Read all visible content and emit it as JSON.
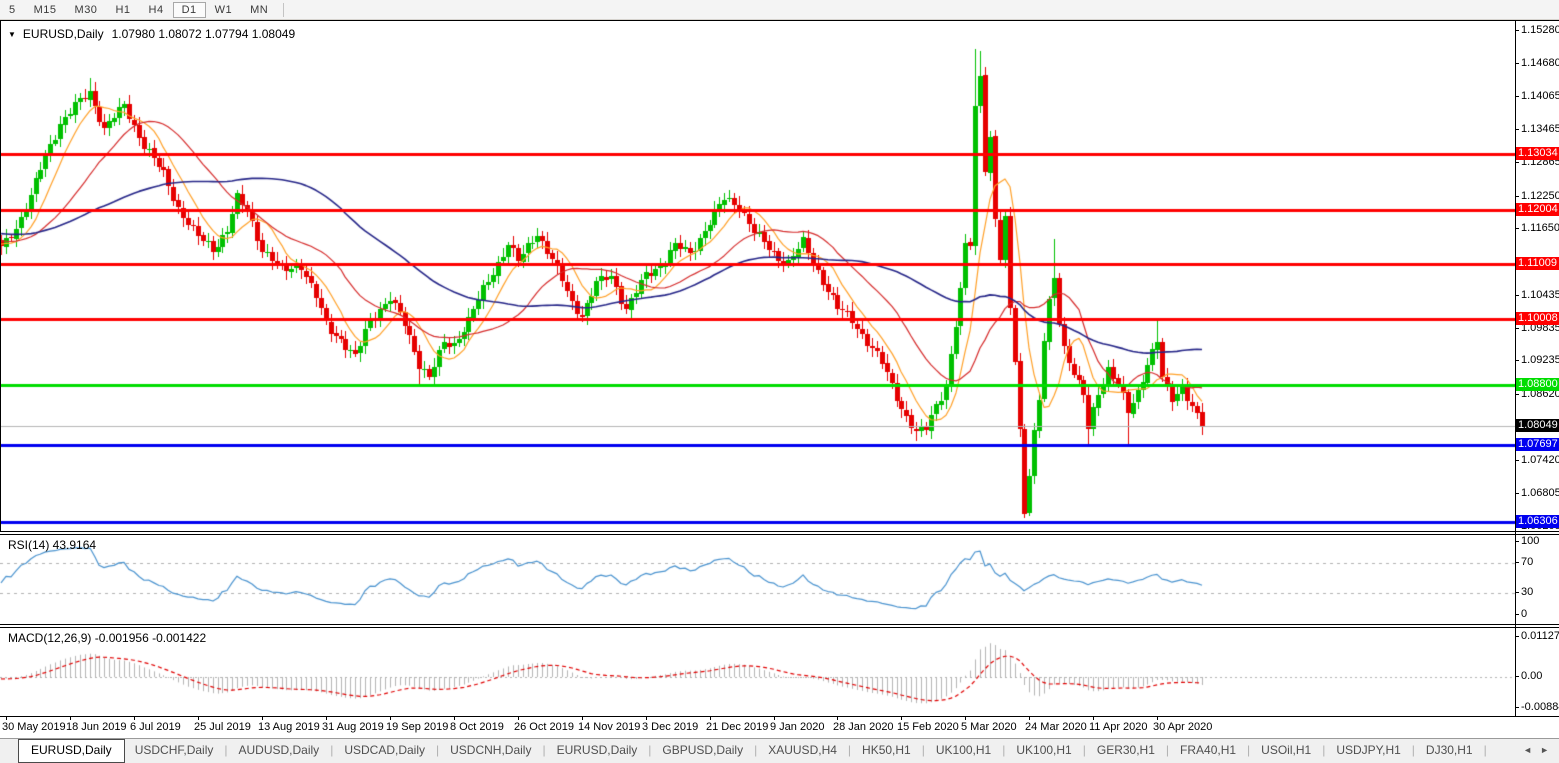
{
  "toolbar": {
    "timeframes": [
      "5",
      "M15",
      "M30",
      "H1",
      "H4",
      "D1",
      "W1",
      "MN"
    ],
    "active": "D1"
  },
  "chart": {
    "title_symbol": "EURUSD,Daily",
    "title_ohlc": "1.07980 1.08072 1.07794 1.08049"
  },
  "chart_data": {
    "type": "candlestick",
    "symbol": "EURUSD",
    "timeframe": "Daily",
    "ohlc_display": {
      "open": "1.07980",
      "high": "1.08072",
      "low": "1.07794",
      "close": "1.08049"
    },
    "bar_count": 245,
    "bars_per_label": 13,
    "x_labels": [
      "30 May 2019",
      "18 Jun 2019",
      "6 Jul 2019",
      "25 Jul 2019",
      "13 Aug 2019",
      "31 Aug 2019",
      "19 Sep 2019",
      "8 Oct 2019",
      "26 Oct 2019",
      "14 Nov 2019",
      "3 Dec 2019",
      "21 Dec 2019",
      "9 Jan 2020",
      "28 Jan 2020",
      "15 Feb 2020",
      "5 Mar 2020",
      "24 Mar 2020",
      "11 Apr 2020",
      "30 Apr 2020"
    ],
    "price_ticks": [
      "1.15280",
      "1.14680",
      "1.14065",
      "1.13465",
      "1.12865",
      "1.12250",
      "1.11650",
      "1.10435",
      "1.09835",
      "1.09235",
      "1.08620",
      "1.07420",
      "1.06805",
      "1.06205"
    ],
    "close_keyframes": [
      [
        0,
        1.113
      ],
      [
        3,
        1.117
      ],
      [
        6,
        1.1225
      ],
      [
        9,
        1.13
      ],
      [
        12,
        1.136
      ],
      [
        15,
        1.139
      ],
      [
        18,
        1.1415
      ],
      [
        21,
        1.135
      ],
      [
        25,
        1.139
      ],
      [
        29,
        1.132
      ],
      [
        33,
        1.1265
      ],
      [
        36,
        1.1205
      ],
      [
        40,
        1.115
      ],
      [
        43,
        1.113
      ],
      [
        46,
        1.1165
      ],
      [
        48,
        1.122
      ],
      [
        50,
        1.12
      ],
      [
        53,
        1.113
      ],
      [
        57,
        1.109
      ],
      [
        61,
        1.11
      ],
      [
        64,
        1.104
      ],
      [
        66,
        1.099
      ],
      [
        69,
        1.0965
      ],
      [
        72,
        1.093
      ],
      [
        75,
        1.1
      ],
      [
        79,
        1.104
      ],
      [
        82,
        1.099
      ],
      [
        85,
        1.092
      ],
      [
        87,
        1.0895
      ],
      [
        90,
        1.0955
      ],
      [
        92,
        1.0955
      ],
      [
        95,
        1.1
      ],
      [
        99,
        1.107
      ],
      [
        103,
        1.114
      ],
      [
        105,
        1.1105
      ],
      [
        109,
        1.116
      ],
      [
        112,
        1.111
      ],
      [
        116,
        1.103
      ],
      [
        118,
        1.101
      ],
      [
        121,
        1.1065
      ],
      [
        124,
        1.108
      ],
      [
        127,
        1.102
      ],
      [
        131,
        1.108
      ],
      [
        134,
        1.11
      ],
      [
        137,
        1.1135
      ],
      [
        140,
        1.112
      ],
      [
        144,
        1.118
      ],
      [
        147,
        1.122
      ],
      [
        150,
        1.121
      ],
      [
        153,
        1.116
      ],
      [
        157,
        1.112
      ],
      [
        160,
        1.1105
      ],
      [
        163,
        1.114
      ],
      [
        166,
        1.109
      ],
      [
        170,
        1.102
      ],
      [
        173,
        1.1
      ],
      [
        176,
        1.096
      ],
      [
        179,
        1.092
      ],
      [
        183,
        1.084
      ],
      [
        186,
        1.079
      ],
      [
        188,
        1.08
      ],
      [
        190,
        1.0845
      ],
      [
        192,
        1.088
      ],
      [
        194,
        1.099
      ],
      [
        195,
        1.105
      ],
      [
        196,
        1.1135
      ],
      [
        197,
        1.114
      ],
      [
        198,
        1.139
      ],
      [
        199,
        1.145
      ],
      [
        200,
        1.128
      ],
      [
        201,
        1.133
      ],
      [
        202,
        1.118
      ],
      [
        203,
        1.111
      ],
      [
        204,
        1.118
      ],
      [
        205,
        1.102
      ],
      [
        206,
        1.093
      ],
      [
        207,
        1.08
      ],
      [
        208,
        1.065
      ],
      [
        209,
        1.072
      ],
      [
        210,
        1.079
      ],
      [
        211,
        1.085
      ],
      [
        212,
        1.096
      ],
      [
        213,
        1.103
      ],
      [
        214,
        1.108
      ],
      [
        215,
        1.1
      ],
      [
        216,
        1.095
      ],
      [
        218,
        1.09
      ],
      [
        220,
        1.086
      ],
      [
        221,
        1.08
      ],
      [
        223,
        1.087
      ],
      [
        225,
        1.091
      ],
      [
        227,
        1.088
      ],
      [
        229,
        1.083
      ],
      [
        231,
        1.087
      ],
      [
        233,
        1.092
      ],
      [
        235,
        1.096
      ],
      [
        236,
        1.089
      ],
      [
        238,
        1.0855
      ],
      [
        240,
        1.088
      ],
      [
        242,
        1.084
      ],
      [
        244,
        1.08049
      ]
    ],
    "wick_overrides": [
      [
        18,
        "h",
        1.1442
      ],
      [
        85,
        "l",
        1.0879
      ],
      [
        186,
        "l",
        1.0778
      ],
      [
        198,
        "h",
        1.1495
      ],
      [
        199,
        "h",
        1.1492
      ],
      [
        208,
        "l",
        1.0637
      ],
      [
        214,
        "h",
        1.1147
      ],
      [
        221,
        "l",
        1.0769
      ],
      [
        229,
        "l",
        1.0768
      ],
      [
        235,
        "h",
        1.1
      ]
    ],
    "bull_color": "#00c000",
    "bear_color": "#e60000",
    "moving_averages": [
      {
        "period": 8,
        "color": "#ffa028"
      },
      {
        "period": 22,
        "color": "#d52b2b"
      },
      {
        "period": 55,
        "color": "#262688"
      }
    ],
    "h_lines": [
      {
        "price": 1.13034,
        "label": "1.13034",
        "color": "#ff0000"
      },
      {
        "price": 1.12004,
        "label": "1.12004",
        "color": "#ff0000"
      },
      {
        "price": 1.11009,
        "label": "1.11009",
        "color": "#ff0000"
      },
      {
        "price": 1.10008,
        "label": "1.10008",
        "color": "#ff0000"
      },
      {
        "price": 1.088,
        "label": "1.08800",
        "color": "#00dd00"
      },
      {
        "price": 1.07697,
        "label": "1.07697",
        "color": "#0000f0"
      },
      {
        "price": 1.06306,
        "label": "1.06306",
        "color": "#0000f0"
      }
    ],
    "current_price": {
      "value": 1.08049,
      "label": "1.08049",
      "line_color": "#b4b4b4",
      "label_bg": "#000000"
    }
  },
  "rsi": {
    "label": "RSI(14) 43.9164",
    "period": 14,
    "current_value": 43.9164,
    "levels": [
      70,
      30
    ],
    "ticks": [
      "100",
      "70",
      "30",
      "0"
    ],
    "line_color": "#4a93cf"
  },
  "macd": {
    "label": "MACD(12,26,9) -0.001956 -0.001422",
    "params": [
      12,
      26,
      9
    ],
    "values": [
      "-0.001956",
      "-0.001422"
    ],
    "ticks": [
      "0.011277",
      "0.00",
      "-0.00884"
    ],
    "histogram_color": "#b4b4b4",
    "signal_color": "#e00000"
  },
  "tabs": {
    "items": [
      "EURUSD,Daily",
      "USDCHF,Daily",
      "AUDUSD,Daily",
      "USDCAD,Daily",
      "USDCNH,Daily",
      "EURUSD,Daily",
      "GBPUSD,Daily",
      "XAUUSD,H4",
      "HK50,H1",
      "UK100,H1",
      "UK100,H1",
      "GER30,H1",
      "FRA40,H1",
      "USOil,H1",
      "USDJPY,H1",
      "DJ30,H1"
    ],
    "active_index": 0,
    "scroll_left_icon": "◄",
    "scroll_right_icon": "►"
  }
}
